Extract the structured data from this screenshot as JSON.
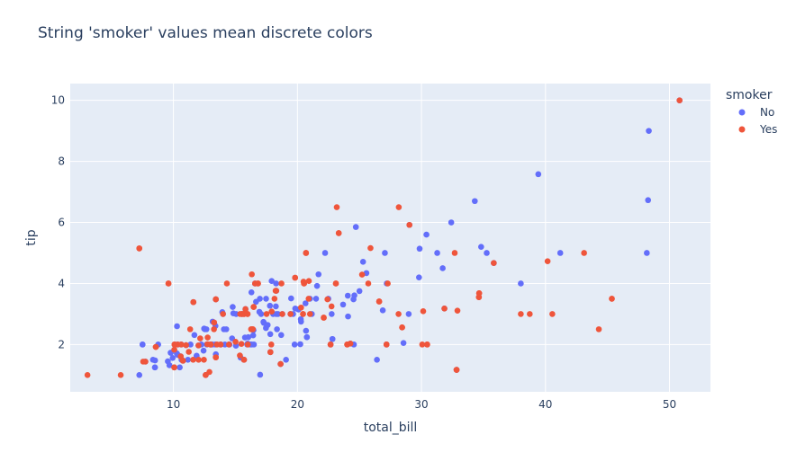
{
  "chart_data": {
    "type": "scatter",
    "title": "String 'smoker' values mean discrete colors",
    "xlabel": "total_bill",
    "ylabel": "tip",
    "xlim": [
      1.68,
      53.3
    ],
    "ylim": [
      0.45,
      10.55
    ],
    "xticks": [
      10,
      20,
      30,
      40,
      50
    ],
    "yticks": [
      2,
      4,
      6,
      8,
      10
    ],
    "grid": true,
    "legend": {
      "title": "smoker",
      "placement": "top-right"
    },
    "series": [
      {
        "name": "No",
        "color": "#636efa",
        "points": [
          [
            16.99,
            1.01
          ],
          [
            10.34,
            1.66
          ],
          [
            21.01,
            3.5
          ],
          [
            23.68,
            3.31
          ],
          [
            24.59,
            3.61
          ],
          [
            25.29,
            4.71
          ],
          [
            8.77,
            2.0
          ],
          [
            26.88,
            3.12
          ],
          [
            15.04,
            1.96
          ],
          [
            14.78,
            3.23
          ],
          [
            10.27,
            1.71
          ],
          [
            35.26,
            5.0
          ],
          [
            15.42,
            1.57
          ],
          [
            18.43,
            3.0
          ],
          [
            14.83,
            3.02
          ],
          [
            21.58,
            3.92
          ],
          [
            10.33,
            1.67
          ],
          [
            16.29,
            3.71
          ],
          [
            16.97,
            3.5
          ],
          [
            20.65,
            3.35
          ],
          [
            17.92,
            4.08
          ],
          [
            20.29,
            2.75
          ],
          [
            15.77,
            2.23
          ],
          [
            39.42,
            7.58
          ],
          [
            19.82,
            3.18
          ],
          [
            17.81,
            2.34
          ],
          [
            13.37,
            2.0
          ],
          [
            12.69,
            2.0
          ],
          [
            21.7,
            4.3
          ],
          [
            19.65,
            3.0
          ],
          [
            9.55,
            1.45
          ],
          [
            18.35,
            2.5
          ],
          [
            15.06,
            3.0
          ],
          [
            20.69,
            2.45
          ],
          [
            17.78,
            3.27
          ],
          [
            24.06,
            3.6
          ],
          [
            16.31,
            2.0
          ],
          [
            16.93,
            3.07
          ],
          [
            18.69,
            2.31
          ],
          [
            31.27,
            5.0
          ],
          [
            16.04,
            2.24
          ],
          [
            17.46,
            2.54
          ],
          [
            13.94,
            3.06
          ],
          [
            9.68,
            1.32
          ],
          [
            30.4,
            5.6
          ],
          [
            18.29,
            3.0
          ],
          [
            22.23,
            5.0
          ],
          [
            32.4,
            6.0
          ],
          [
            28.55,
            2.05
          ],
          [
            18.04,
            3.0
          ],
          [
            12.54,
            2.5
          ],
          [
            10.29,
            2.6
          ],
          [
            34.81,
            5.2
          ],
          [
            9.94,
            1.56
          ],
          [
            25.56,
            4.34
          ],
          [
            19.49,
            3.51
          ],
          [
            26.41,
            1.5
          ],
          [
            48.27,
            6.73
          ],
          [
            17.59,
            2.64
          ],
          [
            20.08,
            3.15
          ],
          [
            16.45,
            2.47
          ],
          [
            20.23,
            2.01
          ],
          [
            12.02,
            1.97
          ],
          [
            17.07,
            3.0
          ],
          [
            14.73,
            2.2
          ],
          [
            10.51,
            1.25
          ],
          [
            27.2,
            4.0
          ],
          [
            22.76,
            3.0
          ],
          [
            17.29,
            2.71
          ],
          [
            16.66,
            3.4
          ],
          [
            15.98,
            2.03
          ],
          [
            13.03,
            2.0
          ],
          [
            18.28,
            4.0
          ],
          [
            24.71,
            5.85
          ],
          [
            21.16,
            3.0
          ],
          [
            28.97,
            3.0
          ],
          [
            22.49,
            3.5
          ],
          [
            13.81,
            2.0
          ],
          [
            11.02,
            1.98
          ],
          [
            18.29,
            3.76
          ],
          [
            17.59,
            2.64
          ],
          [
            20.08,
            3.15
          ],
          [
            16.45,
            2.47
          ],
          [
            13.42,
            3.48
          ],
          [
            22.82,
            2.18
          ],
          [
            20.76,
            2.24
          ],
          [
            12.48,
            2.52
          ],
          [
            11.87,
            1.63
          ],
          [
            9.78,
            1.73
          ],
          [
            7.51,
            2.0
          ],
          [
            14.07,
            2.5
          ],
          [
            13.13,
            2.0
          ],
          [
            17.26,
            2.74
          ],
          [
            24.55,
            2.0
          ],
          [
            19.77,
            2.0
          ],
          [
            29.85,
            5.14
          ],
          [
            48.17,
            5.0
          ],
          [
            25.0,
            3.75
          ],
          [
            13.39,
            2.61
          ],
          [
            16.49,
            2.0
          ],
          [
            21.5,
            3.5
          ],
          [
            12.66,
            2.5
          ],
          [
            16.21,
            2.0
          ],
          [
            13.81,
            2.0
          ],
          [
            24.52,
            3.48
          ],
          [
            20.76,
            2.24
          ],
          [
            31.71,
            4.5
          ],
          [
            10.59,
            1.61
          ],
          [
            10.63,
            2.0
          ],
          [
            50.81,
            10.0
          ],
          [
            7.25,
            1.0
          ],
          [
            31.85,
            3.18
          ],
          [
            8.51,
            1.25
          ],
          [
            10.65,
            1.5
          ],
          [
            12.43,
            1.8
          ],
          [
            24.08,
            2.92
          ],
          [
            11.69,
            2.31
          ],
          [
            13.42,
            1.68
          ],
          [
            14.26,
            2.5
          ],
          [
            15.95,
            2.0
          ],
          [
            12.48,
            2.52
          ],
          [
            29.8,
            4.2
          ],
          [
            8.52,
            1.48
          ],
          [
            14.52,
            2.0
          ],
          [
            11.38,
            2.0
          ],
          [
            22.82,
            2.18
          ],
          [
            19.08,
            1.5
          ],
          [
            20.27,
            2.83
          ],
          [
            11.17,
            1.5
          ],
          [
            12.26,
            2.0
          ],
          [
            18.26,
            3.25
          ],
          [
            8.51,
            1.25
          ],
          [
            10.33,
            2.0
          ],
          [
            14.15,
            2.0
          ],
          [
            13.16,
            2.75
          ],
          [
            17.47,
            3.5
          ],
          [
            34.3,
            6.7
          ],
          [
            41.19,
            5.0
          ],
          [
            27.05,
            5.0
          ],
          [
            16.43,
            2.3
          ],
          [
            8.35,
            1.5
          ],
          [
            18.64,
            1.36
          ],
          [
            11.87,
            1.63
          ],
          [
            9.78,
            1.73
          ],
          [
            7.51,
            2.0
          ],
          [
            16.58,
            4.0
          ],
          [
            14.48,
            2.0
          ],
          [
            11.61,
            3.39
          ],
          [
            10.77,
            1.47
          ],
          [
            15.53,
            3.0
          ],
          [
            10.07,
            1.25
          ],
          [
            12.6,
            1.0
          ],
          [
            32.83,
            1.17
          ],
          [
            35.83,
            4.67
          ],
          [
            29.03,
            5.92
          ],
          [
            27.18,
            2.0
          ],
          [
            22.67,
            2.0
          ],
          [
            17.82,
            1.75
          ],
          [
            18.78,
            3.0
          ],
          [
            15.81,
            3.16
          ],
          [
            38.01,
            4.0
          ],
          [
            15.69,
            1.5
          ],
          [
            19.44,
            3.0
          ],
          [
            10.09,
            2.0
          ],
          [
            24.27,
            2.03
          ],
          [
            48.33,
            9.0
          ],
          [
            14.0,
            3.0
          ],
          [
            7.74,
            1.44
          ]
        ]
      },
      {
        "name": "Yes",
        "color": "#ef553b",
        "points": [
          [
            38.01,
            3.0
          ],
          [
            11.24,
            1.76
          ],
          [
            20.29,
            3.21
          ],
          [
            13.81,
            2.0
          ],
          [
            11.02,
            1.98
          ],
          [
            18.29,
            3.76
          ],
          [
            3.07,
            1.0
          ],
          [
            15.01,
            2.09
          ],
          [
            12.02,
            1.97
          ],
          [
            17.92,
            3.08
          ],
          [
            19.44,
            3.0
          ],
          [
            32.68,
            5.0
          ],
          [
            16.0,
            2.0
          ],
          [
            13.0,
            2.0
          ],
          [
            16.4,
            2.5
          ],
          [
            20.53,
            4.0
          ],
          [
            16.47,
            3.23
          ],
          [
            26.59,
            3.41
          ],
          [
            38.73,
            3.0
          ],
          [
            24.27,
            2.03
          ],
          [
            12.76,
            2.23
          ],
          [
            30.06,
            2.0
          ],
          [
            25.89,
            5.16
          ],
          [
            13.27,
            2.5
          ],
          [
            28.17,
            6.5
          ],
          [
            12.9,
            1.1
          ],
          [
            28.15,
            3.0
          ],
          [
            11.59,
            1.5
          ],
          [
            7.74,
            1.44
          ],
          [
            30.14,
            3.09
          ],
          [
            16.82,
            4.0
          ],
          [
            18.64,
            1.36
          ],
          [
            13.42,
            3.48
          ],
          [
            8.58,
            1.92
          ],
          [
            15.98,
            3.0
          ],
          [
            13.42,
            1.58
          ],
          [
            16.27,
            2.5
          ],
          [
            10.09,
            2.0
          ],
          [
            20.45,
            3.0
          ],
          [
            13.28,
            2.72
          ],
          [
            22.12,
            2.88
          ],
          [
            24.01,
            2.0
          ],
          [
            15.69,
            3.0
          ],
          [
            11.61,
            3.39
          ],
          [
            10.77,
            1.47
          ],
          [
            15.53,
            3.0
          ],
          [
            10.07,
            1.25
          ],
          [
            12.6,
            1.0
          ],
          [
            32.83,
            1.17
          ],
          [
            27.18,
            2.0
          ],
          [
            22.67,
            2.0
          ],
          [
            17.82,
            1.75
          ],
          [
            14.0,
            3.0
          ],
          [
            7.25,
            5.15
          ],
          [
            25.71,
            4.0
          ],
          [
            9.6,
            4.0
          ],
          [
            34.63,
            3.55
          ],
          [
            34.65,
            3.68
          ],
          [
            23.33,
            5.65
          ],
          [
            45.35,
            3.5
          ],
          [
            23.17,
            6.5
          ],
          [
            40.55,
            3.0
          ],
          [
            20.69,
            5.0
          ],
          [
            20.9,
            3.5
          ],
          [
            30.46,
            2.0
          ],
          [
            18.15,
            3.5
          ],
          [
            23.1,
            4.0
          ],
          [
            15.69,
            1.5
          ],
          [
            19.81,
            4.19
          ],
          [
            28.44,
            2.56
          ],
          [
            15.48,
            2.02
          ],
          [
            16.58,
            4.0
          ],
          [
            7.56,
            1.44
          ],
          [
            10.34,
            2.0
          ],
          [
            43.11,
            5.0
          ],
          [
            13.0,
            2.0
          ],
          [
            13.51,
            2.0
          ],
          [
            18.71,
            4.0
          ],
          [
            12.74,
            2.01
          ],
          [
            13.0,
            2.0
          ],
          [
            16.4,
            2.5
          ],
          [
            20.53,
            4.0
          ],
          [
            16.47,
            3.23
          ],
          [
            26.59,
            3.41
          ],
          [
            17.51,
            3.0
          ],
          [
            10.59,
            1.61
          ],
          [
            10.63,
            2.0
          ],
          [
            50.81,
            10.0
          ],
          [
            15.81,
            3.16
          ],
          [
            7.25,
            5.15
          ],
          [
            31.85,
            3.18
          ],
          [
            16.82,
            4.0
          ],
          [
            32.9,
            3.11
          ],
          [
            17.89,
            2.0
          ],
          [
            14.48,
            2.0
          ],
          [
            9.6,
            4.0
          ],
          [
            34.63,
            3.55
          ],
          [
            34.65,
            3.68
          ],
          [
            23.33,
            5.65
          ],
          [
            45.35,
            3.5
          ],
          [
            44.3,
            2.5
          ],
          [
            22.42,
            3.48
          ],
          [
            20.92,
            4.08
          ],
          [
            15.36,
            1.64
          ],
          [
            20.49,
            4.06
          ],
          [
            25.21,
            4.29
          ],
          [
            18.24,
            3.76
          ],
          [
            14.31,
            4.0
          ],
          [
            40.17,
            4.73
          ],
          [
            27.28,
            4.0
          ],
          [
            12.03,
            1.5
          ],
          [
            21.01,
            3.0
          ],
          [
            12.46,
            1.5
          ],
          [
            11.35,
            2.5
          ],
          [
            15.38,
            3.0
          ],
          [
            30.46,
            2.0
          ],
          [
            23.1,
            4.0
          ],
          [
            15.69,
            1.5
          ],
          [
            19.81,
            4.19
          ],
          [
            28.44,
            2.56
          ],
          [
            5.75,
            1.0
          ],
          [
            16.32,
            4.3
          ],
          [
            22.75,
            3.25
          ],
          [
            20.69,
            5.0
          ],
          [
            10.07,
            1.83
          ],
          [
            12.16,
            2.2
          ],
          [
            13.42,
            1.58
          ],
          [
            8.58,
            1.92
          ],
          [
            15.98,
            3.0
          ],
          [
            13.42,
            3.48
          ],
          [
            16.27,
            2.5
          ],
          [
            10.09,
            2.0
          ],
          [
            20.45,
            3.0
          ],
          [
            13.28,
            2.72
          ],
          [
            22.12,
            2.88
          ],
          [
            24.01,
            2.0
          ],
          [
            15.69,
            3.0
          ],
          [
            11.61,
            3.39
          ],
          [
            10.77,
            1.47
          ],
          [
            15.53,
            3.0
          ],
          [
            10.07,
            1.25
          ],
          [
            12.6,
            1.0
          ],
          [
            32.83,
            1.17
          ],
          [
            35.83,
            4.67
          ],
          [
            29.03,
            5.92
          ],
          [
            27.18,
            2.0
          ],
          [
            22.67,
            2.0
          ],
          [
            17.82,
            1.75
          ],
          [
            18.78,
            3.0
          ]
        ]
      }
    ]
  }
}
